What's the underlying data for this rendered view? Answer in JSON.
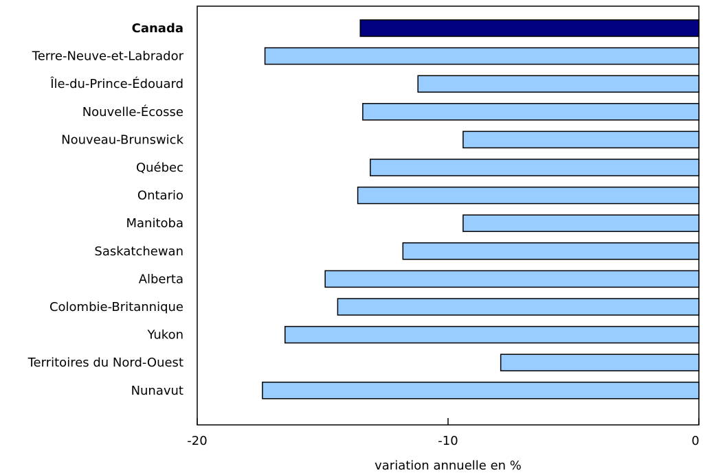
{
  "chart_data": {
    "type": "bar",
    "orientation": "horizontal",
    "categories": [
      "Canada",
      "Terre-Neuve-et-Labrador",
      "Île-du-Prince-Édouard",
      "Nouvelle-Écosse",
      "Nouveau-Brunswick",
      "Québec",
      "Ontario",
      "Manitoba",
      "Saskatchewan",
      "Alberta",
      "Colombie-Britannique",
      "Yukon",
      "Territoires du Nord-Ouest",
      "Nunavut"
    ],
    "values": [
      -13.5,
      -17.3,
      -11.2,
      -13.4,
      -9.4,
      -13.1,
      -13.6,
      -9.4,
      -11.8,
      -14.9,
      -14.4,
      -16.5,
      -7.9,
      -17.4
    ],
    "highlight_category": "Canada",
    "title": "",
    "xlabel": "variation annuelle en %",
    "ylabel": "",
    "xlim": [
      -20,
      0
    ],
    "xticks": [
      -20,
      -10,
      0
    ],
    "xtick_labels": [
      "-20",
      "-10",
      "0"
    ],
    "grid": false,
    "legend": "none",
    "colors": {
      "highlight_fill": "#000080",
      "bar_fill": "#99ccff",
      "bar_stroke": "#000000",
      "axis": "#000000"
    }
  }
}
